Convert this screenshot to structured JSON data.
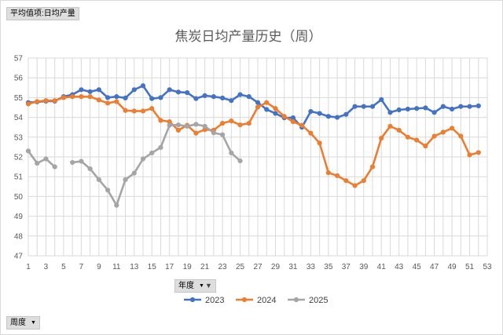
{
  "filters": {
    "value_field": "平均值项:日均产量",
    "series_field": "年度",
    "axis_field": "周度"
  },
  "icons": {
    "dropdown": "dropdown-arrow-icon",
    "filter": "filter-funnel-icon"
  },
  "chart_data": {
    "type": "line",
    "title": "焦炭日均产量历史（周）",
    "xlabel": "",
    "ylabel": "",
    "ylim": [
      47,
      57
    ],
    "yticks": [
      47,
      48,
      49,
      50,
      51,
      52,
      53,
      54,
      55,
      56,
      57
    ],
    "xlim": [
      1,
      53
    ],
    "xticks": [
      1,
      3,
      5,
      7,
      9,
      11,
      13,
      15,
      17,
      19,
      21,
      23,
      25,
      27,
      29,
      31,
      33,
      35,
      37,
      39,
      41,
      43,
      45,
      47,
      49,
      51,
      53
    ],
    "grid": true,
    "legend_position": "bottom",
    "series": [
      {
        "name": "2023",
        "color": "#4472c4",
        "values": [
          54.75,
          54.78,
          54.82,
          54.82,
          55.05,
          55.15,
          55.4,
          55.3,
          55.4,
          55.0,
          55.05,
          54.98,
          55.4,
          55.6,
          54.95,
          55.0,
          55.4,
          55.28,
          55.25,
          54.95,
          55.1,
          55.05,
          54.98,
          54.85,
          55.15,
          55.05,
          54.75,
          54.4,
          54.2,
          53.98,
          53.98,
          53.5,
          54.3,
          54.2,
          54.05,
          54.0,
          54.15,
          54.55,
          54.55,
          54.55,
          54.9,
          54.25,
          54.38,
          54.42,
          54.45,
          54.48,
          54.25,
          54.55,
          54.42,
          54.55,
          54.55,
          54.58
        ]
      },
      {
        "name": "2024",
        "color": "#ed7d31",
        "values": [
          54.68,
          54.8,
          54.85,
          54.85,
          55.0,
          55.05,
          55.05,
          55.05,
          54.88,
          54.72,
          54.8,
          54.35,
          54.32,
          54.32,
          54.45,
          53.85,
          53.78,
          53.35,
          53.6,
          53.2,
          53.38,
          53.35,
          53.7,
          53.82,
          53.62,
          53.7,
          54.52,
          54.75,
          54.45,
          54.05,
          53.78,
          53.6,
          53.2,
          52.7,
          51.2,
          51.05,
          50.8,
          50.55,
          50.8,
          51.5,
          52.95,
          53.55,
          53.35,
          53.0,
          52.85,
          52.55,
          53.05,
          53.25,
          53.45,
          53.05,
          52.1,
          52.22
        ]
      },
      {
        "name": "2025",
        "color": "#a5a5a5",
        "values": [
          52.3,
          51.68,
          51.9,
          51.5,
          null,
          51.72,
          51.78,
          51.4,
          50.85,
          50.32,
          49.55,
          50.85,
          51.18,
          51.9,
          52.2,
          52.48,
          53.6,
          53.62,
          53.55,
          53.65,
          53.55,
          53.22,
          53.12,
          52.2,
          51.8,
          null,
          null,
          null,
          null,
          null,
          null,
          null,
          null,
          null,
          null,
          null,
          null,
          null,
          null,
          null,
          null,
          null,
          null,
          null,
          null,
          null,
          null,
          null,
          null,
          null,
          null,
          null
        ]
      }
    ]
  }
}
